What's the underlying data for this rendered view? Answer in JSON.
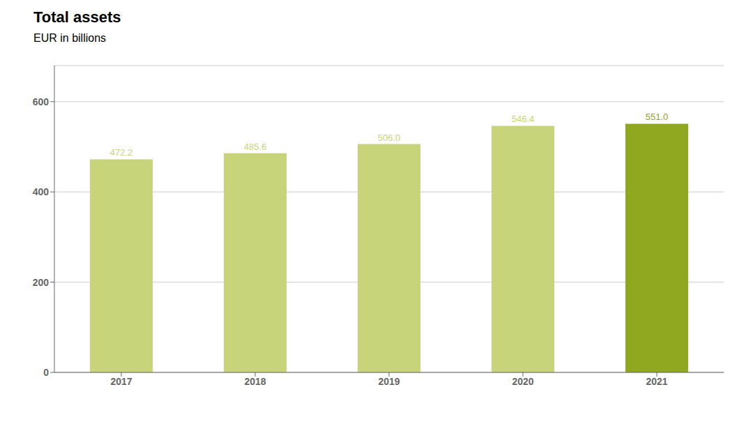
{
  "chart_data": {
    "type": "bar",
    "title": "Total assets",
    "subtitle": "EUR in billions",
    "categories": [
      "2017",
      "2018",
      "2019",
      "2020",
      "2021"
    ],
    "values": [
      472.2,
      485.6,
      506.0,
      546.4,
      551.0
    ],
    "value_labels": [
      "472.2",
      "485.6",
      "506.0",
      "546.4",
      "551.0"
    ],
    "data_labels": true,
    "colors": [
      "#c8d47a",
      "#c8d47a",
      "#c8d47a",
      "#c8d47a",
      "#8fa820"
    ],
    "ylim": [
      0,
      680
    ],
    "yticks": [
      0,
      200,
      400,
      600
    ],
    "grid": true
  }
}
